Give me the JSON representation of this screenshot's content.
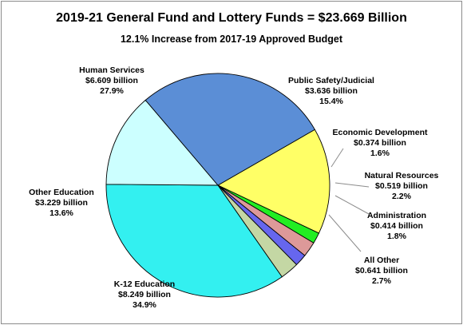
{
  "chart_data": {
    "type": "pie",
    "title": "2019-21 General Fund and Lottery Funds = $23.669 Billion",
    "subtitle": "12.1% Increase from 2017-19 Approved Budget",
    "slices": [
      {
        "name": "Public Safety/Judicial",
        "value": 3.636,
        "amount": "$3.636 billion",
        "percent": "15.4%",
        "color": "#ffff66"
      },
      {
        "name": "Economic Development",
        "value": 0.374,
        "amount": "$0.374 billion",
        "percent": "1.6%",
        "color": "#22ee22"
      },
      {
        "name": "Natural Resources",
        "value": 0.519,
        "amount": "$0.519 billion",
        "percent": "2.2%",
        "color": "#dd9999"
      },
      {
        "name": "Administration",
        "value": 0.414,
        "amount": "$0.414 billion",
        "percent": "1.8%",
        "color": "#6666ee"
      },
      {
        "name": "All Other",
        "value": 0.641,
        "amount": "$0.641 billion",
        "percent": "2.7%",
        "color": "#c4d7a4"
      },
      {
        "name": "K-12 Education",
        "value": 8.249,
        "amount": "$8.249 billion",
        "percent": "34.9%",
        "color": "#33f0f0"
      },
      {
        "name": "Other Education",
        "value": 3.229,
        "amount": "$3.229 billion",
        "percent": "13.6%",
        "color": "#ccffff"
      },
      {
        "name": "Human Services",
        "value": 6.609,
        "amount": "$6.609 billion",
        "percent": "27.9%",
        "color": "#5b8ed6"
      }
    ]
  }
}
